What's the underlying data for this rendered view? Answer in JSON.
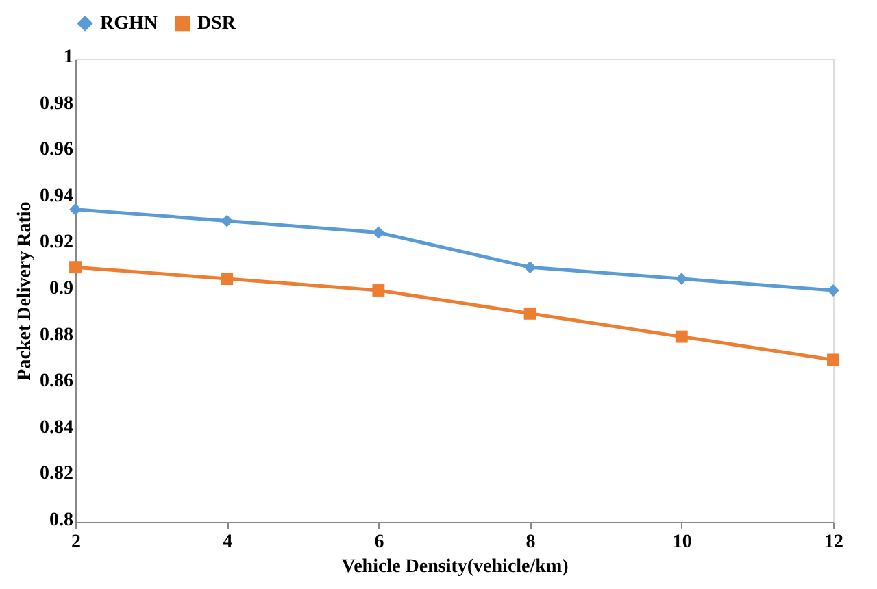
{
  "chart_data": {
    "type": "line",
    "xlabel": "Vehicle Density(vehicle/km)",
    "ylabel": "Packet Delivery Ratio",
    "x": [
      2,
      4,
      6,
      8,
      10,
      12
    ],
    "series": [
      {
        "name": "RGHN",
        "color": "#5b9bd5",
        "marker": "diamond",
        "values": [
          0.935,
          0.93,
          0.925,
          0.91,
          0.905,
          0.9
        ]
      },
      {
        "name": "DSR",
        "color": "#ed7d31",
        "marker": "square",
        "values": [
          0.91,
          0.905,
          0.9,
          0.89,
          0.88,
          0.87
        ]
      }
    ],
    "xlim": [
      2,
      12
    ],
    "xticks": [
      2,
      4,
      6,
      8,
      10,
      12
    ],
    "ylim": [
      0.8,
      1
    ],
    "yticks": [
      0.8,
      0.82,
      0.84,
      0.86,
      0.88,
      0.9,
      0.92,
      0.94,
      0.96,
      0.98,
      1
    ],
    "grid": false,
    "legend": "top",
    "line_style": "solid"
  }
}
